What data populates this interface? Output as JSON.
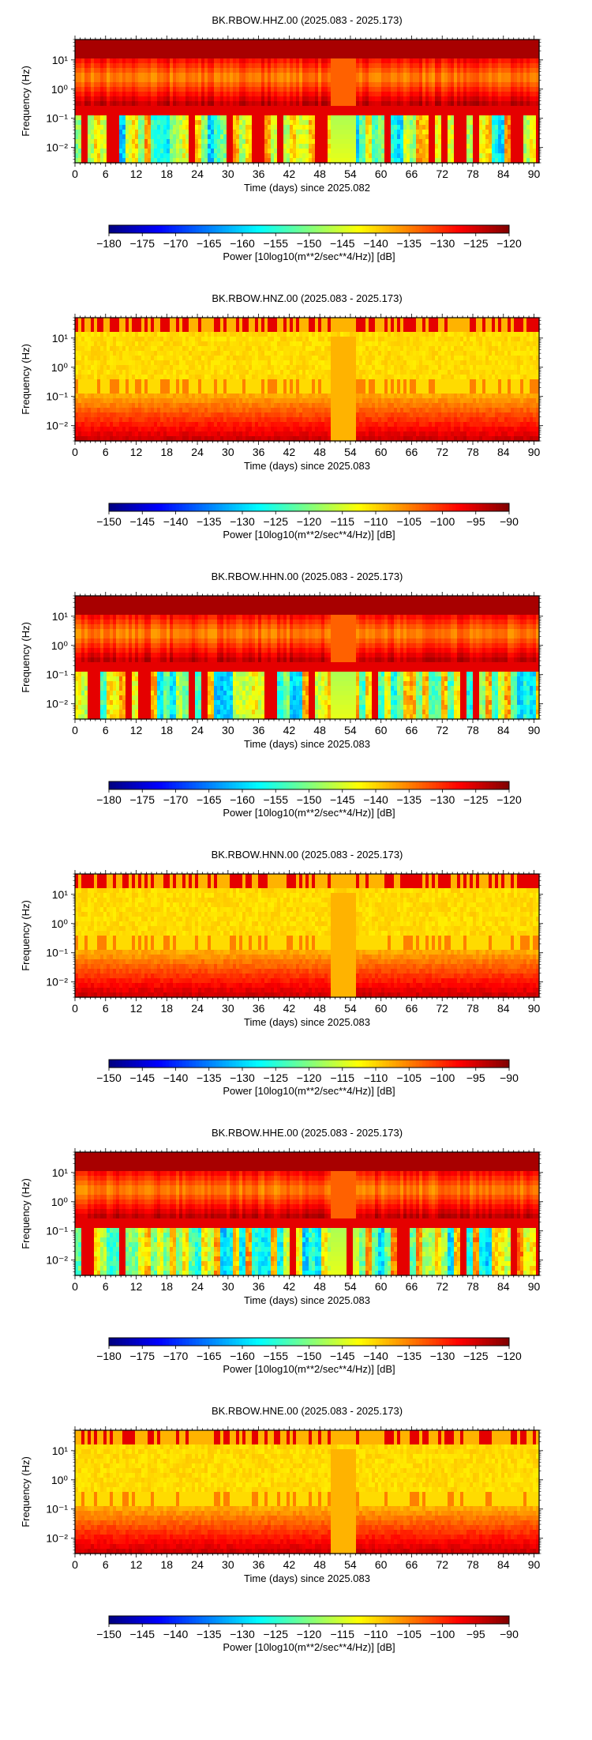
{
  "panels": [
    {
      "title": "BK.RBOW.HHZ.00 (2025.083 - 2025.173)",
      "xlabel": "Time (days) since 2025.082",
      "ylabel": "Frequency (Hz)",
      "colorbar_label": "Power [10log10(m**2/sec**4/Hz)] [dB]",
      "colorbar_ticks": [
        "−180",
        "−175",
        "−170",
        "−165",
        "−160",
        "−155",
        "−150",
        "−145",
        "−140",
        "−135",
        "−130",
        "−125",
        "−120"
      ]
    },
    {
      "title": "BK.RBOW.HNZ.00 (2025.083 - 2025.173)",
      "xlabel": "Time (days) since 2025.083",
      "ylabel": "Frequency (Hz)",
      "colorbar_label": "Power [10log10(m**2/sec**4/Hz)] [dB]",
      "colorbar_ticks": [
        "−150",
        "−145",
        "−140",
        "−135",
        "−130",
        "−125",
        "−120",
        "−115",
        "−110",
        "−105",
        "−100",
        "−95",
        "−90"
      ]
    },
    {
      "title": "BK.RBOW.HHN.00 (2025.083 - 2025.173)",
      "xlabel": "Time (days) since 2025.083",
      "ylabel": "Frequency (Hz)",
      "colorbar_label": "Power [10log10(m**2/sec**4/Hz)] [dB]",
      "colorbar_ticks": [
        "−180",
        "−175",
        "−170",
        "−165",
        "−160",
        "−155",
        "−150",
        "−145",
        "−140",
        "−135",
        "−130",
        "−125",
        "−120"
      ]
    },
    {
      "title": "BK.RBOW.HNN.00 (2025.083 - 2025.173)",
      "xlabel": "Time (days) since 2025.083",
      "ylabel": "Frequency (Hz)",
      "colorbar_label": "Power [10log10(m**2/sec**4/Hz)] [dB]",
      "colorbar_ticks": [
        "−150",
        "−145",
        "−140",
        "−135",
        "−130",
        "−125",
        "−120",
        "−115",
        "−110",
        "−105",
        "−100",
        "−95",
        "−90"
      ]
    },
    {
      "title": "BK.RBOW.HHE.00 (2025.083 - 2025.173)",
      "xlabel": "Time (days) since 2025.083",
      "ylabel": "Frequency (Hz)",
      "colorbar_label": "Power [10log10(m**2/sec**4/Hz)] [dB]",
      "colorbar_ticks": [
        "−180",
        "−175",
        "−170",
        "−165",
        "−160",
        "−155",
        "−150",
        "−145",
        "−140",
        "−135",
        "−130",
        "−125",
        "−120"
      ]
    },
    {
      "title": "BK.RBOW.HNE.00 (2025.083 - 2025.173)",
      "xlabel": "Time (days) since 2025.083",
      "ylabel": "Frequency (Hz)",
      "colorbar_label": "Power [10log10(m**2/sec**4/Hz)] [dB]",
      "colorbar_ticks": [
        "−150",
        "−145",
        "−140",
        "−135",
        "−130",
        "−125",
        "−120",
        "−115",
        "−110",
        "−105",
        "−100",
        "−95",
        "−90"
      ]
    }
  ],
  "chart_data": [
    {
      "type": "heatmap",
      "channel": "HHZ",
      "profile": "broadband",
      "x_ticks": [
        "0",
        "6",
        "12",
        "18",
        "24",
        "30",
        "36",
        "42",
        "48",
        "54",
        "60",
        "66",
        "72",
        "78",
        "84",
        "90"
      ],
      "y_ticks": [
        "10⁻²",
        "10⁻¹",
        "10⁰",
        "10¹"
      ],
      "xlim": [
        0,
        91
      ],
      "ylim_hz": [
        0.003,
        50
      ],
      "y_scale": "log",
      "color_range_db": [
        -180,
        -120
      ],
      "colormap": "jet"
    },
    {
      "type": "heatmap",
      "channel": "HNZ",
      "profile": "strongmotion",
      "x_ticks": [
        "0",
        "6",
        "12",
        "18",
        "24",
        "30",
        "36",
        "42",
        "48",
        "54",
        "60",
        "66",
        "72",
        "78",
        "84",
        "90"
      ],
      "y_ticks": [
        "10⁻²",
        "10⁻¹",
        "10⁰",
        "10¹"
      ],
      "xlim": [
        0,
        91
      ],
      "ylim_hz": [
        0.003,
        50
      ],
      "y_scale": "log",
      "color_range_db": [
        -150,
        -90
      ],
      "colormap": "jet"
    },
    {
      "type": "heatmap",
      "channel": "HHN",
      "profile": "broadband",
      "x_ticks": [
        "0",
        "6",
        "12",
        "18",
        "24",
        "30",
        "36",
        "42",
        "48",
        "54",
        "60",
        "66",
        "72",
        "78",
        "84",
        "90"
      ],
      "y_ticks": [
        "10⁻²",
        "10⁻¹",
        "10⁰",
        "10¹"
      ],
      "xlim": [
        0,
        91
      ],
      "ylim_hz": [
        0.003,
        50
      ],
      "y_scale": "log",
      "color_range_db": [
        -180,
        -120
      ],
      "colormap": "jet"
    },
    {
      "type": "heatmap",
      "channel": "HNN",
      "profile": "strongmotion",
      "x_ticks": [
        "0",
        "6",
        "12",
        "18",
        "24",
        "30",
        "36",
        "42",
        "48",
        "54",
        "60",
        "66",
        "72",
        "78",
        "84",
        "90"
      ],
      "y_ticks": [
        "10⁻²",
        "10⁻¹",
        "10⁰",
        "10¹"
      ],
      "xlim": [
        0,
        91
      ],
      "ylim_hz": [
        0.003,
        50
      ],
      "y_scale": "log",
      "color_range_db": [
        -150,
        -90
      ],
      "colormap": "jet"
    },
    {
      "type": "heatmap",
      "channel": "HHE",
      "profile": "broadband",
      "x_ticks": [
        "0",
        "6",
        "12",
        "18",
        "24",
        "30",
        "36",
        "42",
        "48",
        "54",
        "60",
        "66",
        "72",
        "78",
        "84",
        "90"
      ],
      "y_ticks": [
        "10⁻²",
        "10⁻¹",
        "10⁰",
        "10¹"
      ],
      "xlim": [
        0,
        91
      ],
      "ylim_hz": [
        0.003,
        50
      ],
      "y_scale": "log",
      "color_range_db": [
        -180,
        -120
      ],
      "colormap": "jet"
    },
    {
      "type": "heatmap",
      "channel": "HNE",
      "profile": "strongmotion",
      "x_ticks": [
        "0",
        "6",
        "12",
        "18",
        "24",
        "30",
        "36",
        "42",
        "48",
        "54",
        "60",
        "66",
        "72",
        "78",
        "84",
        "90"
      ],
      "y_ticks": [
        "10⁻²",
        "10⁻¹",
        "10⁰",
        "10¹"
      ],
      "xlim": [
        0,
        91
      ],
      "ylim_hz": [
        0.003,
        50
      ],
      "y_scale": "log",
      "color_range_db": [
        -150,
        -90
      ],
      "colormap": "jet"
    }
  ]
}
